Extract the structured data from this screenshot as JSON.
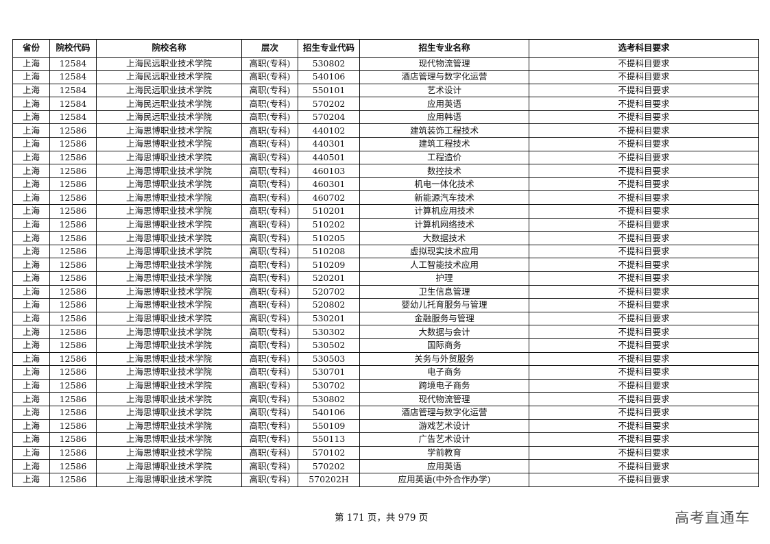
{
  "table": {
    "headers": [
      "省份",
      "院校代码",
      "院校名称",
      "层次",
      "招生专业代码",
      "招生专业名称",
      "选考科目要求"
    ],
    "rows": [
      [
        "上海",
        "12584",
        "上海民远职业技术学院",
        "高职(专科)",
        "530802",
        "现代物流管理",
        "不提科目要求"
      ],
      [
        "上海",
        "12584",
        "上海民远职业技术学院",
        "高职(专科)",
        "540106",
        "酒店管理与数字化运营",
        "不提科目要求"
      ],
      [
        "上海",
        "12584",
        "上海民远职业技术学院",
        "高职(专科)",
        "550101",
        "艺术设计",
        "不提科目要求"
      ],
      [
        "上海",
        "12584",
        "上海民远职业技术学院",
        "高职(专科)",
        "570202",
        "应用英语",
        "不提科目要求"
      ],
      [
        "上海",
        "12584",
        "上海民远职业技术学院",
        "高职(专科)",
        "570204",
        "应用韩语",
        "不提科目要求"
      ],
      [
        "上海",
        "12586",
        "上海思博职业技术学院",
        "高职(专科)",
        "440102",
        "建筑装饰工程技术",
        "不提科目要求"
      ],
      [
        "上海",
        "12586",
        "上海思博职业技术学院",
        "高职(专科)",
        "440301",
        "建筑工程技术",
        "不提科目要求"
      ],
      [
        "上海",
        "12586",
        "上海思博职业技术学院",
        "高职(专科)",
        "440501",
        "工程造价",
        "不提科目要求"
      ],
      [
        "上海",
        "12586",
        "上海思博职业技术学院",
        "高职(专科)",
        "460103",
        "数控技术",
        "不提科目要求"
      ],
      [
        "上海",
        "12586",
        "上海思博职业技术学院",
        "高职(专科)",
        "460301",
        "机电一体化技术",
        "不提科目要求"
      ],
      [
        "上海",
        "12586",
        "上海思博职业技术学院",
        "高职(专科)",
        "460702",
        "新能源汽车技术",
        "不提科目要求"
      ],
      [
        "上海",
        "12586",
        "上海思博职业技术学院",
        "高职(专科)",
        "510201",
        "计算机应用技术",
        "不提科目要求"
      ],
      [
        "上海",
        "12586",
        "上海思博职业技术学院",
        "高职(专科)",
        "510202",
        "计算机网络技术",
        "不提科目要求"
      ],
      [
        "上海",
        "12586",
        "上海思博职业技术学院",
        "高职(专科)",
        "510205",
        "大数据技术",
        "不提科目要求"
      ],
      [
        "上海",
        "12586",
        "上海思博职业技术学院",
        "高职(专科)",
        "510208",
        "虚拟现实技术应用",
        "不提科目要求"
      ],
      [
        "上海",
        "12586",
        "上海思博职业技术学院",
        "高职(专科)",
        "510209",
        "人工智能技术应用",
        "不提科目要求"
      ],
      [
        "上海",
        "12586",
        "上海思博职业技术学院",
        "高职(专科)",
        "520201",
        "护理",
        "不提科目要求"
      ],
      [
        "上海",
        "12586",
        "上海思博职业技术学院",
        "高职(专科)",
        "520702",
        "卫生信息管理",
        "不提科目要求"
      ],
      [
        "上海",
        "12586",
        "上海思博职业技术学院",
        "高职(专科)",
        "520802",
        "婴幼儿托育服务与管理",
        "不提科目要求"
      ],
      [
        "上海",
        "12586",
        "上海思博职业技术学院",
        "高职(专科)",
        "530201",
        "金融服务与管理",
        "不提科目要求"
      ],
      [
        "上海",
        "12586",
        "上海思博职业技术学院",
        "高职(专科)",
        "530302",
        "大数据与会计",
        "不提科目要求"
      ],
      [
        "上海",
        "12586",
        "上海思博职业技术学院",
        "高职(专科)",
        "530502",
        "国际商务",
        "不提科目要求"
      ],
      [
        "上海",
        "12586",
        "上海思博职业技术学院",
        "高职(专科)",
        "530503",
        "关务与外贸服务",
        "不提科目要求"
      ],
      [
        "上海",
        "12586",
        "上海思博职业技术学院",
        "高职(专科)",
        "530701",
        "电子商务",
        "不提科目要求"
      ],
      [
        "上海",
        "12586",
        "上海思博职业技术学院",
        "高职(专科)",
        "530702",
        "跨境电子商务",
        "不提科目要求"
      ],
      [
        "上海",
        "12586",
        "上海思博职业技术学院",
        "高职(专科)",
        "530802",
        "现代物流管理",
        "不提科目要求"
      ],
      [
        "上海",
        "12586",
        "上海思博职业技术学院",
        "高职(专科)",
        "540106",
        "酒店管理与数字化运营",
        "不提科目要求"
      ],
      [
        "上海",
        "12586",
        "上海思博职业技术学院",
        "高职(专科)",
        "550109",
        "游戏艺术设计",
        "不提科目要求"
      ],
      [
        "上海",
        "12586",
        "上海思博职业技术学院",
        "高职(专科)",
        "550113",
        "广告艺术设计",
        "不提科目要求"
      ],
      [
        "上海",
        "12586",
        "上海思博职业技术学院",
        "高职(专科)",
        "570102",
        "学前教育",
        "不提科目要求"
      ],
      [
        "上海",
        "12586",
        "上海思博职业技术学院",
        "高职(专科)",
        "570202",
        "应用英语",
        "不提科目要求"
      ],
      [
        "上海",
        "12586",
        "上海思博职业技术学院",
        "高职(专科)",
        "570202H",
        "应用英语(中外合作办学)",
        "不提科目要求"
      ]
    ]
  },
  "footer": {
    "page_text": "第 171 页，共 979 页"
  },
  "watermark": {
    "text": "高考直通车"
  }
}
